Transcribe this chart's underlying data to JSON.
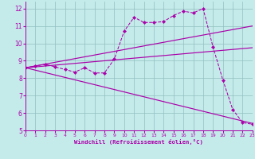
{
  "xlabel": "Windchill (Refroidissement éolien,°C)",
  "xlim": [
    0,
    23
  ],
  "ylim": [
    5,
    12.4
  ],
  "xticks": [
    0,
    1,
    2,
    3,
    4,
    5,
    6,
    7,
    8,
    9,
    10,
    11,
    12,
    13,
    14,
    15,
    16,
    17,
    18,
    19,
    20,
    21,
    22,
    23
  ],
  "yticks": [
    5,
    6,
    7,
    8,
    9,
    10,
    11,
    12
  ],
  "background_color": "#c5eaea",
  "grid_color": "#90c0c0",
  "line_color": "#aa00aa",
  "dotted_series": {
    "x": [
      0,
      1,
      2,
      3,
      4,
      5,
      6,
      7,
      8,
      9,
      10,
      11,
      12,
      13,
      14,
      15,
      16,
      17,
      18,
      19,
      20,
      21,
      22,
      23
    ],
    "y": [
      8.6,
      8.7,
      8.8,
      8.65,
      8.5,
      8.35,
      8.6,
      8.3,
      8.3,
      9.1,
      10.7,
      11.5,
      11.2,
      11.2,
      11.25,
      11.6,
      11.85,
      11.75,
      12.0,
      9.8,
      7.9,
      6.2,
      5.45,
      5.35
    ]
  },
  "straight_lines": [
    {
      "x": [
        0,
        23
      ],
      "y": [
        8.6,
        11.0
      ]
    },
    {
      "x": [
        0,
        23
      ],
      "y": [
        8.6,
        9.75
      ]
    },
    {
      "x": [
        0,
        23
      ],
      "y": [
        8.6,
        5.4
      ]
    }
  ]
}
